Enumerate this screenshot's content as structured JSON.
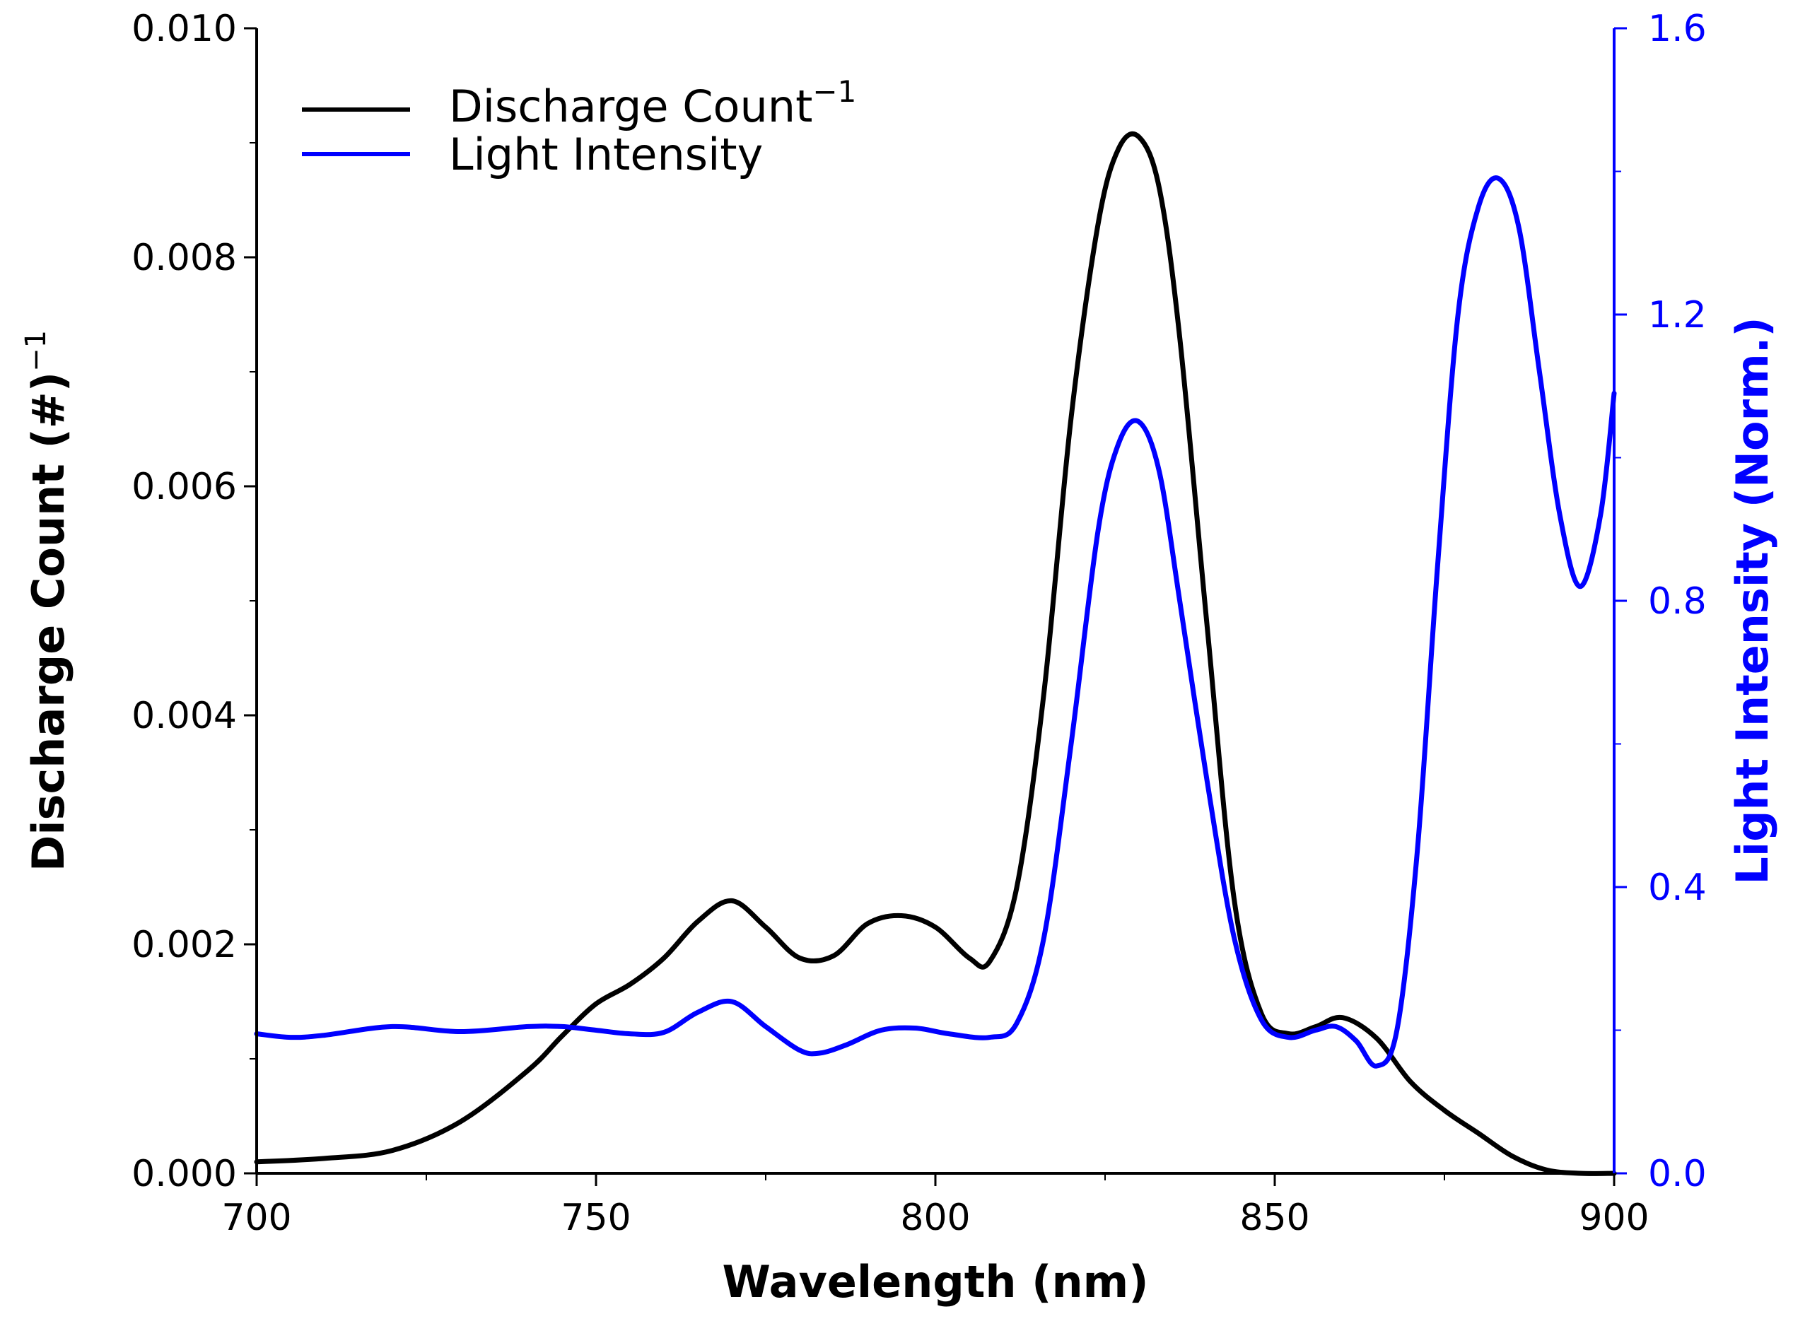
{
  "chart_data": {
    "type": "line",
    "title": "",
    "xlabel": "Wavelength (nm)",
    "ylabel_left": "Discharge Count (#)",
    "ylabel_left_sup": "−1",
    "ylabel_right": "Light Intensity (Norm.)",
    "xlim": [
      700,
      900
    ],
    "ylim_left": [
      0,
      0.01
    ],
    "ylim_right": [
      0,
      1.6
    ],
    "x_ticks": [
      "700",
      "750",
      "800",
      "850",
      "900"
    ],
    "y_left_ticks": [
      "0.000",
      "0.002",
      "0.004",
      "0.006",
      "0.008",
      "0.010"
    ],
    "y_right_ticks": [
      "0.0",
      "0.4",
      "0.8",
      "1.2",
      "1.6"
    ],
    "grid": false,
    "legend_position": "top-left",
    "colors": {
      "left_axis": "#000000",
      "right_axis": "#0000ff"
    },
    "series": [
      {
        "name": "Discharge Count",
        "name_sup": "−1",
        "axis": "left",
        "color": "#000000",
        "x": [
          700,
          710,
          720,
          730,
          740,
          745,
          750,
          755,
          760,
          765,
          770,
          775,
          780,
          785,
          790,
          795,
          800,
          805,
          808,
          812,
          816,
          820,
          824,
          827,
          830,
          833,
          836,
          840,
          844,
          848,
          852,
          856,
          860,
          865,
          870,
          875,
          880,
          885,
          890,
          895,
          900
        ],
        "values": [
          0.0001,
          0.00013,
          0.0002,
          0.00045,
          0.0009,
          0.0012,
          0.00148,
          0.00165,
          0.00188,
          0.0022,
          0.00238,
          0.00215,
          0.00188,
          0.0019,
          0.00218,
          0.00225,
          0.00215,
          0.00188,
          0.00185,
          0.0025,
          0.0042,
          0.0066,
          0.0083,
          0.00895,
          0.00905,
          0.0086,
          0.0073,
          0.0048,
          0.0024,
          0.0014,
          0.00122,
          0.00128,
          0.00136,
          0.00118,
          0.0008,
          0.00055,
          0.00035,
          0.00015,
          3e-05,
          0.0,
          0.0
        ]
      },
      {
        "name": "Light Intensity",
        "axis": "right",
        "color": "#0000ff",
        "x": [
          700,
          705,
          710,
          720,
          730,
          740,
          745,
          750,
          755,
          760,
          765,
          770,
          775,
          780,
          783,
          787,
          792,
          797,
          802,
          808,
          812,
          816,
          820,
          824,
          827,
          830,
          833,
          836,
          840,
          844,
          848,
          852,
          856,
          859,
          862,
          865,
          868,
          871,
          874,
          877,
          880,
          883,
          886,
          889,
          892,
          895,
          898,
          900
        ],
        "values": [
          0.195,
          0.19,
          0.193,
          0.205,
          0.198,
          0.205,
          0.205,
          0.2,
          0.195,
          0.197,
          0.225,
          0.24,
          0.205,
          0.172,
          0.168,
          0.18,
          0.2,
          0.203,
          0.195,
          0.19,
          0.21,
          0.33,
          0.6,
          0.9,
          1.02,
          1.05,
          0.98,
          0.8,
          0.55,
          0.33,
          0.215,
          0.19,
          0.2,
          0.205,
          0.185,
          0.15,
          0.2,
          0.45,
          0.85,
          1.2,
          1.35,
          1.39,
          1.32,
          1.12,
          0.92,
          0.82,
          0.92,
          1.09
        ]
      }
    ]
  }
}
